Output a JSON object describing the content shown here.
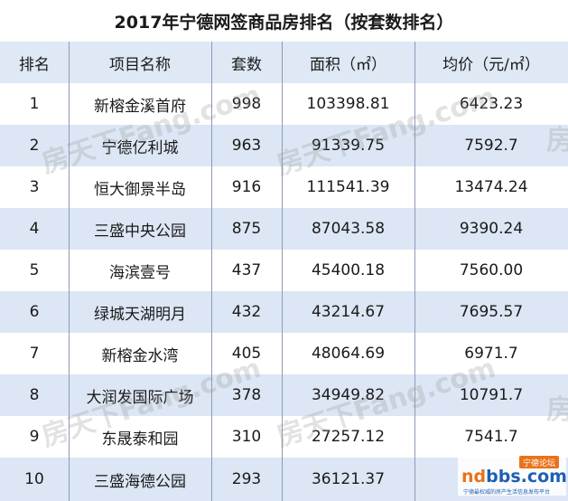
{
  "title": "2017年宁德网签商品房排名（按套数排名）",
  "columns": [
    "排名",
    "项目名称",
    "套数",
    "面积（㎡）",
    "均价（元/㎡）"
  ],
  "rows": [
    {
      "rank": "1",
      "name": "新榕金溪首府",
      "units": "998",
      "area": "103398.81",
      "price": "6423.23"
    },
    {
      "rank": "2",
      "name": "宁德亿利城",
      "units": "963",
      "area": "91339.75",
      "price": "7592.7"
    },
    {
      "rank": "3",
      "name": "恒大御景半岛",
      "units": "916",
      "area": "111541.39",
      "price": "13474.24"
    },
    {
      "rank": "4",
      "name": "三盛中央公园",
      "units": "875",
      "area": "87043.58",
      "price": "9390.24"
    },
    {
      "rank": "5",
      "name": "海滨壹号",
      "units": "437",
      "area": "45400.18",
      "price": "7560.00"
    },
    {
      "rank": "6",
      "name": "绿城天湖明月",
      "units": "432",
      "area": "43214.67",
      "price": "7695.57"
    },
    {
      "rank": "7",
      "name": "新榕金水湾",
      "units": "405",
      "area": "48064.69",
      "price": "6971.7"
    },
    {
      "rank": "8",
      "name": "大润发国际广场",
      "units": "378",
      "area": "34949.82",
      "price": "10791.7"
    },
    {
      "rank": "9",
      "name": "东晟泰和园",
      "units": "310",
      "area": "27257.12",
      "price": "7541.7"
    },
    {
      "rank": "10",
      "name": "三盛海德公园",
      "units": "293",
      "area": "36121.37",
      "price": ""
    }
  ],
  "watermark": {
    "text_a": "房天下",
    "text_b": "Fang.com",
    "side": "房"
  },
  "logo": {
    "badge": "宁德论坛",
    "name_a": "nd",
    "name_b": "bbs.com",
    "tagline": "宁德最权威的房产生活信息发布平台"
  }
}
